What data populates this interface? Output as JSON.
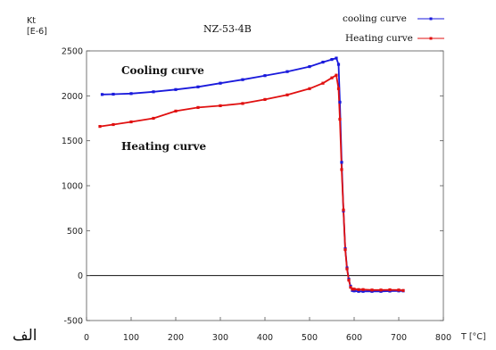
{
  "chart_data": {
    "type": "line",
    "title": "NZ-53-4B",
    "ylabel_line1": "Kt",
    "ylabel_line2": "[E-6]",
    "xlabel": "T [°C]",
    "xlim": [
      0,
      800
    ],
    "ylim": [
      -500,
      2500
    ],
    "x_ticks": [
      0,
      100,
      200,
      300,
      400,
      500,
      600,
      700,
      800
    ],
    "y_ticks": [
      -500,
      0,
      500,
      1000,
      1500,
      2000,
      2500
    ],
    "zero_line": true,
    "legend_position": "top-right",
    "annotations": [
      "Cooling curve",
      "Heating curve"
    ],
    "series": [
      {
        "name": "cooling curve",
        "color": "#1a1adc",
        "x": [
          35,
          60,
          100,
          150,
          200,
          250,
          300,
          350,
          400,
          450,
          500,
          530,
          550,
          560,
          565,
          568,
          572,
          576,
          580,
          584,
          588,
          592,
          596,
          600,
          610,
          620,
          640,
          660,
          680,
          700,
          710
        ],
        "y": [
          2015,
          2018,
          2025,
          2045,
          2070,
          2100,
          2140,
          2180,
          2225,
          2270,
          2325,
          2375,
          2405,
          2420,
          2350,
          1930,
          1260,
          720,
          300,
          85,
          -40,
          -120,
          -165,
          -170,
          -175,
          -175,
          -175,
          -175,
          -172,
          -170,
          -170
        ]
      },
      {
        "name": "Heating curve",
        "color": "#e01010",
        "x": [
          30,
          60,
          100,
          150,
          200,
          250,
          300,
          350,
          400,
          450,
          500,
          530,
          550,
          560,
          565,
          568,
          572,
          576,
          580,
          584,
          588,
          592,
          596,
          600,
          610,
          620,
          640,
          660,
          680,
          700,
          710
        ],
        "y": [
          1660,
          1680,
          1710,
          1750,
          1830,
          1870,
          1890,
          1915,
          1960,
          2010,
          2080,
          2140,
          2200,
          2230,
          2080,
          1740,
          1180,
          730,
          290,
          75,
          -50,
          -130,
          -150,
          -150,
          -155,
          -155,
          -160,
          -160,
          -158,
          -160,
          -165
        ]
      }
    ]
  },
  "corner_label": "الف"
}
